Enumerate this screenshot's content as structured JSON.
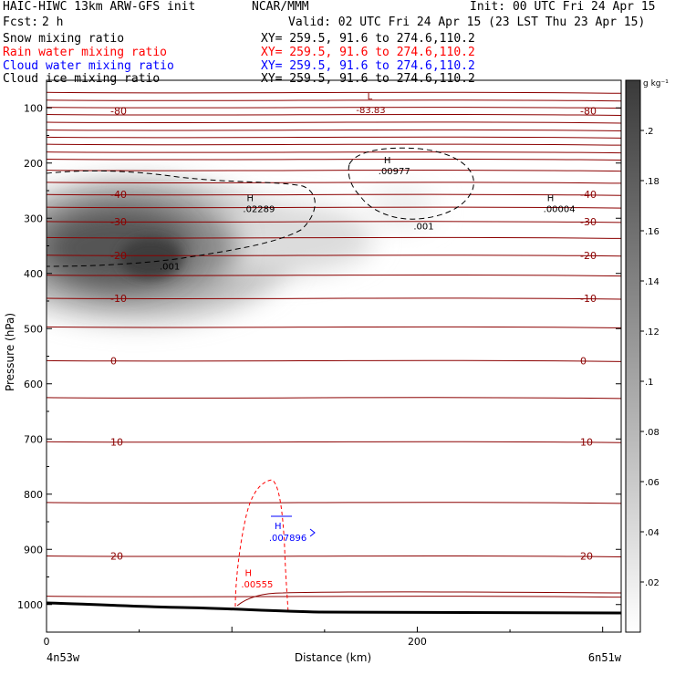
{
  "header": {
    "model": "HAIC-HIWC 13km ARW-GFS init",
    "center": "NCAR/MMM",
    "init": "Init: 00 UTC Fri 24 Apr 15",
    "fcst_label": "Fcst:",
    "fcst_value": "2 h",
    "valid": "Valid: 02 UTC Fri 24 Apr 15 (23 LST Thu 23 Apr 15)",
    "fields": [
      {
        "name": "Snow mixing ratio",
        "xy": "XY= 259.5, 91.6 to 274.6,110.2",
        "color": "#000000"
      },
      {
        "name": "Rain water mixing ratio",
        "xy": "XY= 259.5, 91.6 to 274.6,110.2",
        "color": "#ff0000"
      },
      {
        "name": "Cloud water mixing ratio",
        "xy": "XY= 259.5, 91.6 to 274.6,110.2",
        "color": "#0000ff"
      },
      {
        "name": "Cloud ice mixing ratio",
        "xy": "XY= 259.5, 91.6 to 274.6,110.2",
        "color": "#000000"
      }
    ]
  },
  "chart_data": {
    "type": "contour",
    "xlabel": "Distance (km)",
    "ylabel": "Pressure (hPa)",
    "xlim": [
      0,
      310
    ],
    "ylim": [
      1050,
      50
    ],
    "x_ticks": [
      0,
      200
    ],
    "y_ticks": [
      100,
      200,
      300,
      400,
      500,
      600,
      700,
      800,
      900,
      1000
    ],
    "x_endpoints": [
      "4n53w",
      "6n51w"
    ],
    "colorbar": {
      "unit": "g kg⁻¹",
      "ticks": [
        ".02",
        ".04",
        ".06",
        ".08",
        ".1",
        ".12",
        ".14",
        ".16",
        ".18",
        ".2"
      ],
      "levels": [
        0.02,
        0.04,
        0.06,
        0.08,
        0.1,
        0.12,
        0.14,
        0.16,
        0.18,
        0.2
      ]
    },
    "temperature_contours": {
      "color": "#8b0000",
      "levels_labeled": [
        {
          "value": "-80",
          "p": 105
        },
        {
          "value": "-40",
          "p": 257
        },
        {
          "value": "-30",
          "p": 306
        },
        {
          "value": "-20",
          "p": 367
        },
        {
          "value": "-10",
          "p": 445
        },
        {
          "value": "0",
          "p": 558
        },
        {
          "value": "10",
          "p": 705
        },
        {
          "value": "20",
          "p": 912
        }
      ],
      "isotherm_pressures": [
        72,
        86,
        99,
        112,
        126,
        140,
        153,
        166,
        180,
        193,
        213,
        235,
        257,
        280,
        306,
        335,
        367,
        403,
        445,
        497,
        558,
        625,
        705,
        815,
        912,
        985
      ]
    },
    "annotations": [
      {
        "text": "L",
        "x": 173,
        "p": 78,
        "color": "#8b0000"
      },
      {
        "text": "-83.83",
        "x": 167,
        "p": 103,
        "color": "#8b0000"
      },
      {
        "text": "H",
        "x": 108,
        "p": 262,
        "color": "#000000"
      },
      {
        "text": ".02289",
        "x": 106,
        "p": 282,
        "color": "#000000"
      },
      {
        "text": "H",
        "x": 182,
        "p": 194,
        "color": "#000000"
      },
      {
        "text": ".00977",
        "x": 179,
        "p": 214,
        "color": "#000000"
      },
      {
        "text": ".001",
        "x": 198,
        "p": 314,
        "color": "#000000"
      },
      {
        "text": ".001",
        "x": 61,
        "p": 386,
        "color": "#000000"
      },
      {
        "text": "H",
        "x": 270,
        "p": 262,
        "color": "#000000"
      },
      {
        "text": ".00004",
        "x": 268,
        "p": 282,
        "color": "#000000"
      },
      {
        "text": "H",
        "x": 123,
        "p": 857,
        "color": "#0000ff"
      },
      {
        "text": ".007896",
        "x": 120,
        "p": 878,
        "color": "#0000ff"
      },
      {
        "text": "H",
        "x": 107,
        "p": 942,
        "color": "#ff0000"
      },
      {
        "text": ".00555",
        "x": 105,
        "p": 962,
        "color": "#ff0000"
      }
    ],
    "shaded_maximum": {
      "x": 62,
      "p": 355,
      "value": 0.2
    }
  }
}
